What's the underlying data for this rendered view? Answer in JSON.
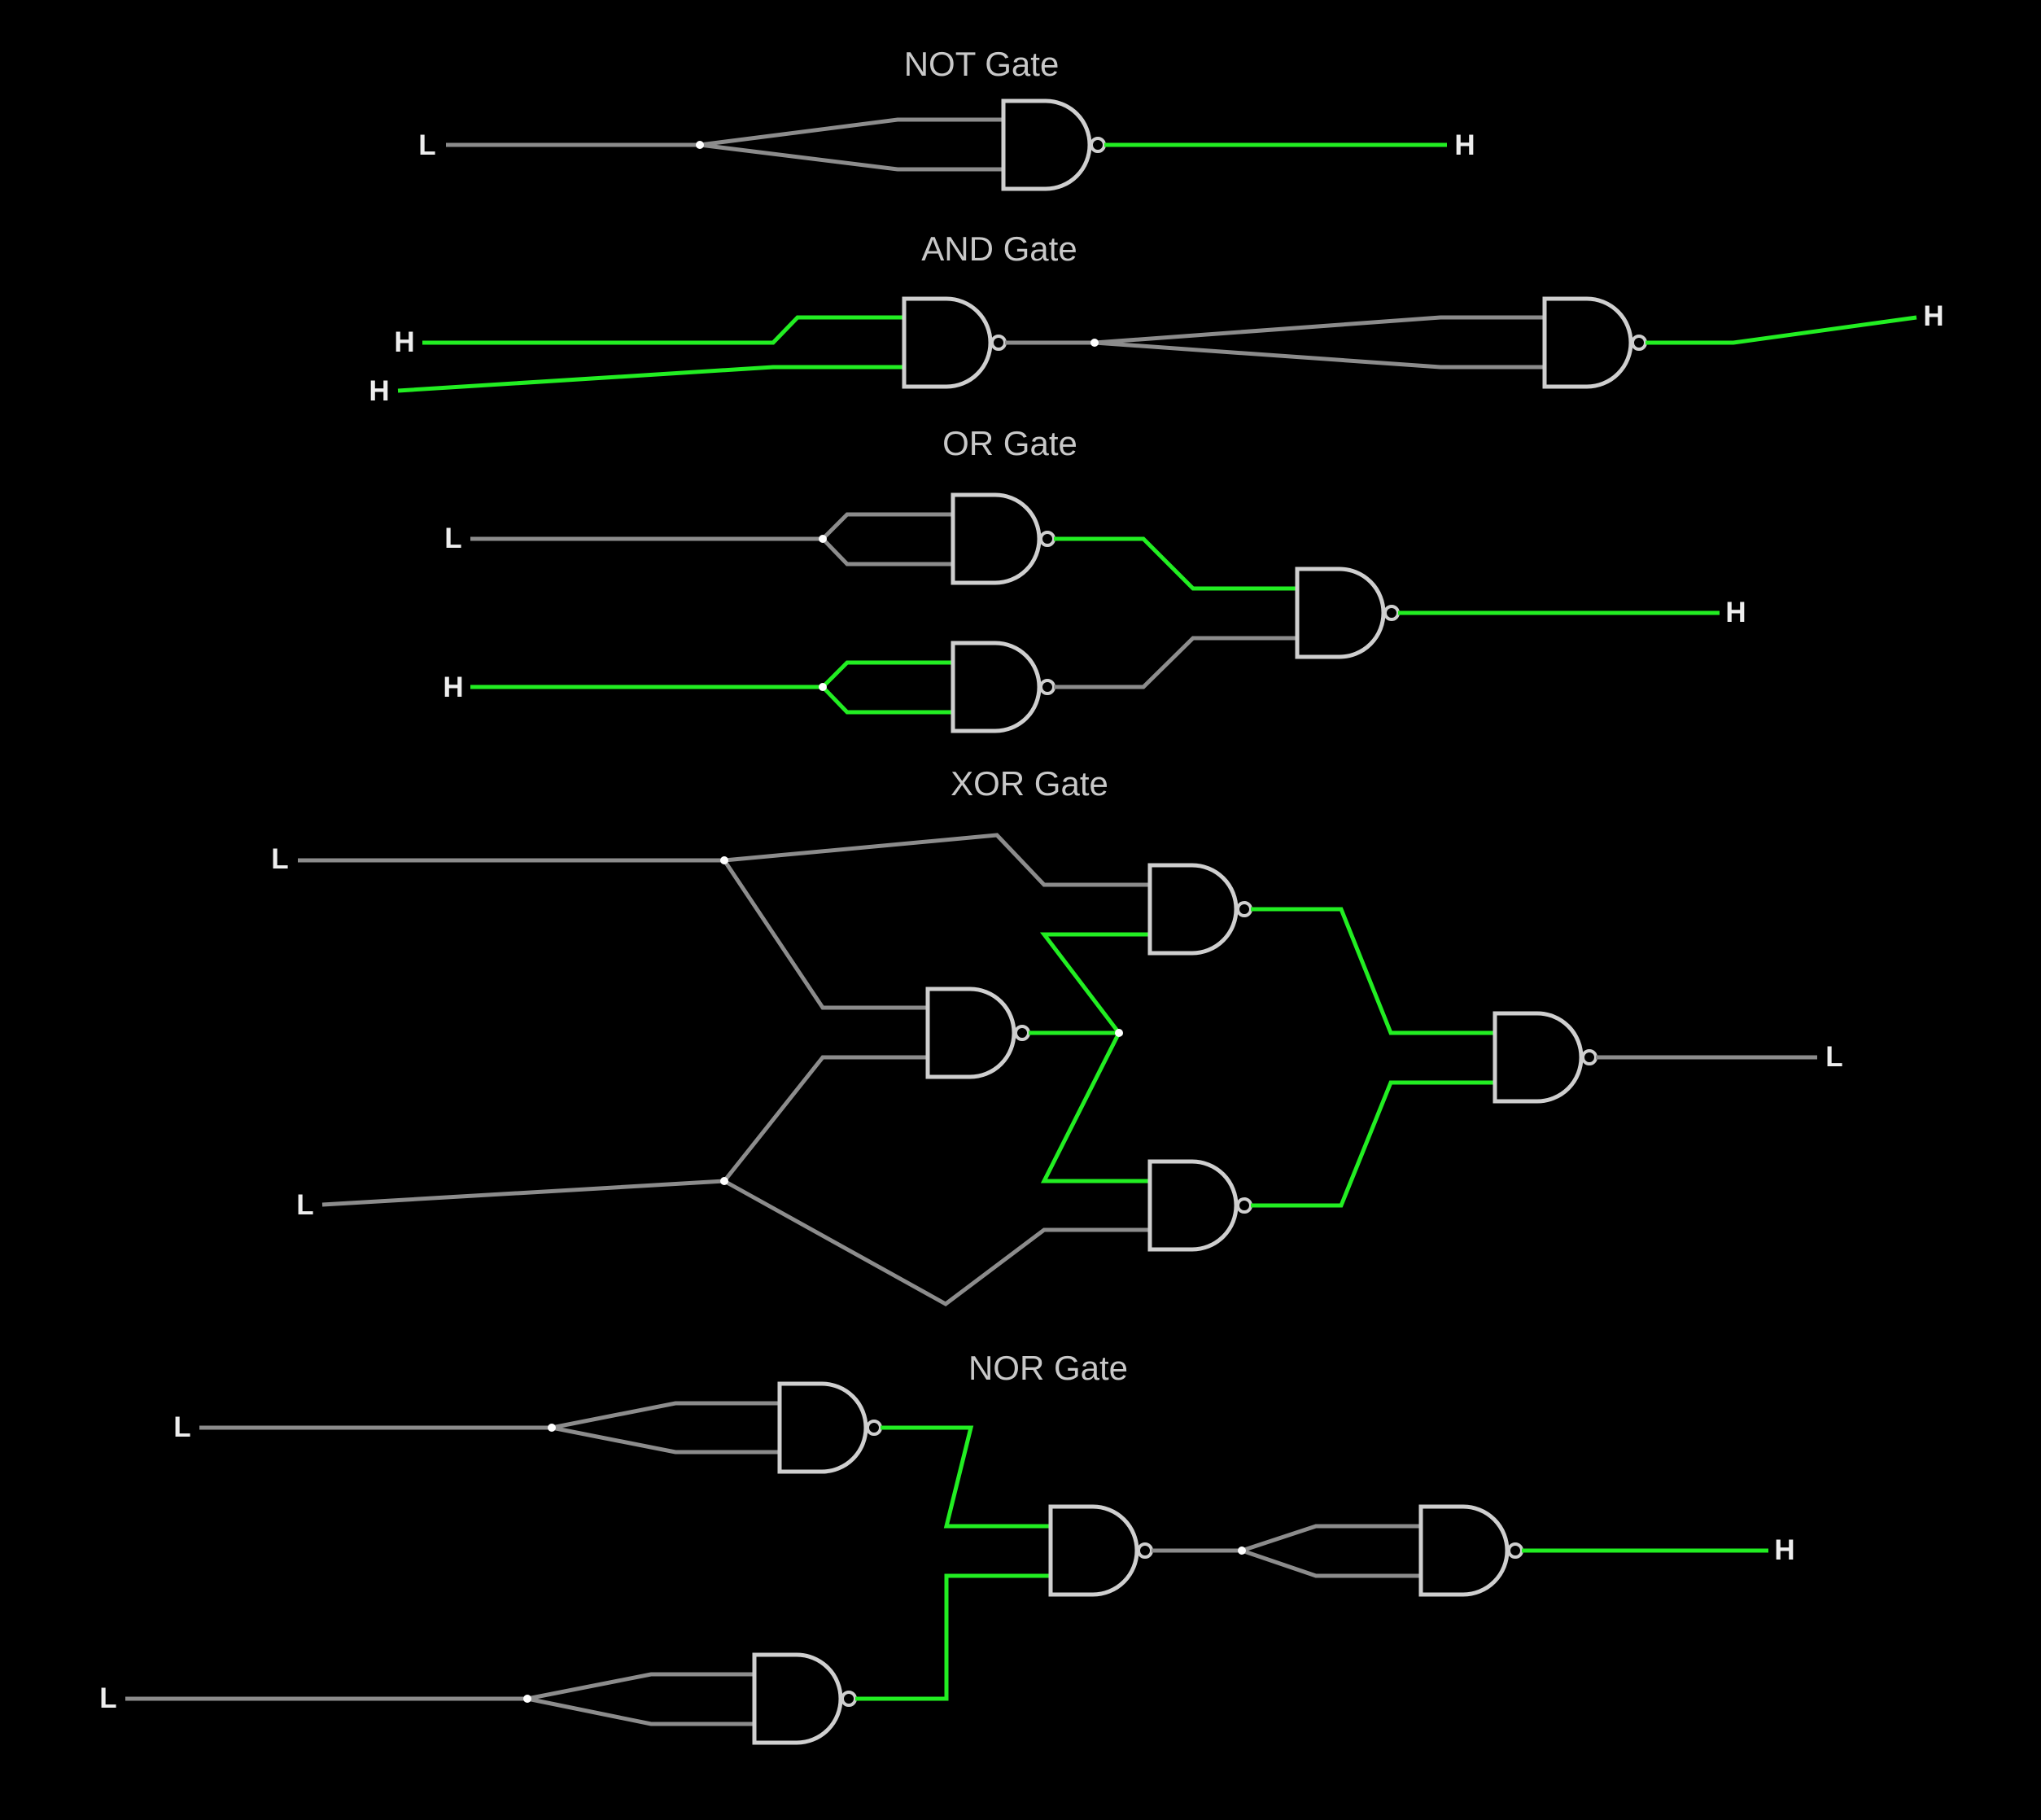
{
  "sections": {
    "not": {
      "title": "NOT Gate"
    },
    "and": {
      "title": "AND Gate"
    },
    "or": {
      "title": "OR Gate"
    },
    "xor": {
      "title": "XOR Gate"
    },
    "nor": {
      "title": "NOR Gate"
    }
  },
  "signals": {
    "not_in": "L",
    "not_out": "H",
    "and_in_a": "H",
    "and_in_b": "H",
    "and_out": "H",
    "or_in_a": "L",
    "or_in_b": "H",
    "or_out": "H",
    "xor_in_a": "L",
    "xor_in_b": "L",
    "xor_out": "L",
    "nor_in_a": "L",
    "nor_in_b": "L",
    "nor_out": "H"
  },
  "colors": {
    "background": "#000000",
    "wire_low": "#8c8c8c",
    "wire_high": "#22ee22",
    "gate_outline": "#cfcfcf"
  },
  "gate_type": "NAND"
}
